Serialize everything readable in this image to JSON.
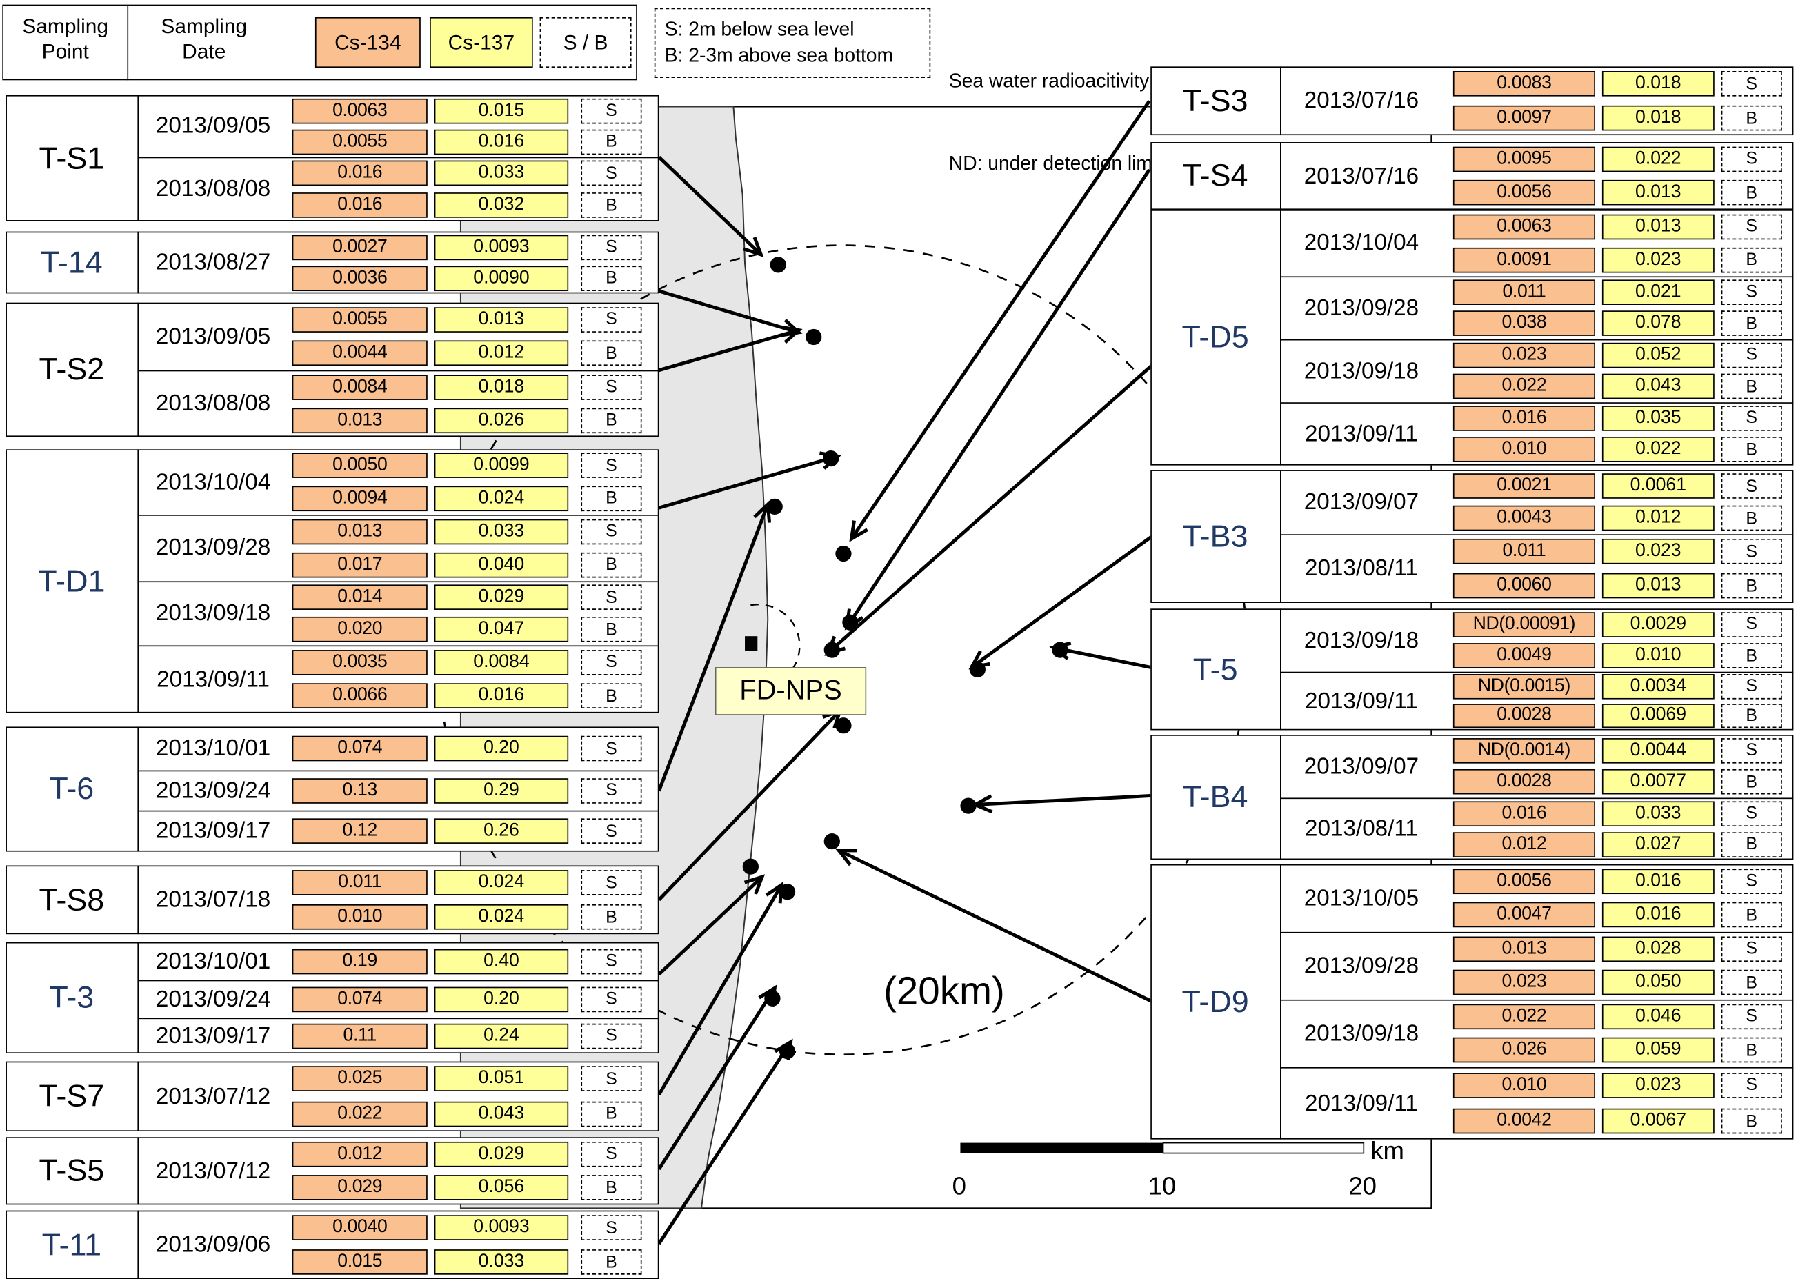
{
  "header": {
    "col_point": [
      "Sampling",
      "Point"
    ],
    "col_date": [
      "Sampling",
      "Date"
    ],
    "cs134": "Cs-134",
    "cs137": "Cs-137",
    "sb": "S / B"
  },
  "legend_sb": {
    "s": "S: 2m below sea level",
    "b": "B: 2-3m above sea bottom"
  },
  "legend_units": {
    "line1": "Sea water radioacitivity (Bq/L):",
    "line2": "ND: under detection limits;    Numbers in parentheses: detection limits"
  },
  "map": {
    "plant_label": "FD-NPS",
    "radius_label": "(20km)",
    "scale_unit": "km",
    "scale_ticks": [
      "0",
      "10",
      "20"
    ],
    "colors": {
      "cs134": "#fac090",
      "cs137": "#ffff99",
      "land": "#e6e6e6"
    }
  },
  "left_points": [
    {
      "name": "T-S1",
      "rows": [
        {
          "date": "2013/09/05",
          "pairs": [
            {
              "cs134": "0.0063",
              "cs137": "0.015",
              "sb": "S"
            },
            {
              "cs134": "0.0055",
              "cs137": "0.016",
              "sb": "B"
            }
          ]
        },
        {
          "date": "2013/08/08",
          "pairs": [
            {
              "cs134": "0.016",
              "cs137": "0.033",
              "sb": "S"
            },
            {
              "cs134": "0.016",
              "cs137": "0.032",
              "sb": "B"
            }
          ]
        }
      ]
    },
    {
      "name": "T-14",
      "rows": [
        {
          "date": "2013/08/27",
          "pairs": [
            {
              "cs134": "0.0027",
              "cs137": "0.0093",
              "sb": "S"
            },
            {
              "cs134": "0.0036",
              "cs137": "0.0090",
              "sb": "B"
            }
          ]
        }
      ]
    },
    {
      "name": "T-S2",
      "rows": [
        {
          "date": "2013/09/05",
          "pairs": [
            {
              "cs134": "0.0055",
              "cs137": "0.013",
              "sb": "S"
            },
            {
              "cs134": "0.0044",
              "cs137": "0.012",
              "sb": "B"
            }
          ]
        },
        {
          "date": "2013/08/08",
          "pairs": [
            {
              "cs134": "0.0084",
              "cs137": "0.018",
              "sb": "S"
            },
            {
              "cs134": "0.013",
              "cs137": "0.026",
              "sb": "B"
            }
          ]
        }
      ]
    },
    {
      "name": "T-D1",
      "rows": [
        {
          "date": "2013/10/04",
          "pairs": [
            {
              "cs134": "0.0050",
              "cs137": "0.0099",
              "sb": "S"
            },
            {
              "cs134": "0.0094",
              "cs137": "0.024",
              "sb": "B"
            }
          ]
        },
        {
          "date": "2013/09/28",
          "pairs": [
            {
              "cs134": "0.013",
              "cs137": "0.033",
              "sb": "S"
            },
            {
              "cs134": "0.017",
              "cs137": "0.040",
              "sb": "B"
            }
          ]
        },
        {
          "date": "2013/09/18",
          "pairs": [
            {
              "cs134": "0.014",
              "cs137": "0.029",
              "sb": "S"
            },
            {
              "cs134": "0.020",
              "cs137": "0.047",
              "sb": "B"
            }
          ]
        },
        {
          "date": "2013/09/11",
          "pairs": [
            {
              "cs134": "0.0035",
              "cs137": "0.0084",
              "sb": "S"
            },
            {
              "cs134": "0.0066",
              "cs137": "0.016",
              "sb": "B"
            }
          ]
        }
      ]
    },
    {
      "name": "T-6",
      "rows": [
        {
          "date": "2013/10/01",
          "pairs": [
            {
              "cs134": "0.074",
              "cs137": "0.20",
              "sb": "S"
            }
          ]
        },
        {
          "date": "2013/09/24",
          "pairs": [
            {
              "cs134": "0.13",
              "cs137": "0.29",
              "sb": "S"
            }
          ]
        },
        {
          "date": "2013/09/17",
          "pairs": [
            {
              "cs134": "0.12",
              "cs137": "0.26",
              "sb": "S"
            }
          ]
        }
      ]
    },
    {
      "name": "T-S8",
      "rows": [
        {
          "date": "2013/07/18",
          "pairs": [
            {
              "cs134": "0.011",
              "cs137": "0.024",
              "sb": "S"
            },
            {
              "cs134": "0.010",
              "cs137": "0.024",
              "sb": "B"
            }
          ]
        }
      ]
    },
    {
      "name": "T-3",
      "rows": [
        {
          "date": "2013/10/01",
          "pairs": [
            {
              "cs134": "0.19",
              "cs137": "0.40",
              "sb": "S"
            }
          ]
        },
        {
          "date": "2013/09/24",
          "pairs": [
            {
              "cs134": "0.074",
              "cs137": "0.20",
              "sb": "S"
            }
          ]
        },
        {
          "date": "2013/09/17",
          "pairs": [
            {
              "cs134": "0.11",
              "cs137": "0.24",
              "sb": "S"
            }
          ]
        }
      ]
    },
    {
      "name": "T-S7",
      "rows": [
        {
          "date": "2013/07/12",
          "pairs": [
            {
              "cs134": "0.025",
              "cs137": "0.051",
              "sb": "S"
            },
            {
              "cs134": "0.022",
              "cs137": "0.043",
              "sb": "B"
            }
          ]
        }
      ]
    },
    {
      "name": "T-S5",
      "rows": [
        {
          "date": "2013/07/12",
          "pairs": [
            {
              "cs134": "0.012",
              "cs137": "0.029",
              "sb": "S"
            },
            {
              "cs134": "0.029",
              "cs137": "0.056",
              "sb": "B"
            }
          ]
        }
      ]
    },
    {
      "name": "T-11",
      "rows": [
        {
          "date": "2013/09/06",
          "pairs": [
            {
              "cs134": "0.0040",
              "cs137": "0.0093",
              "sb": "S"
            },
            {
              "cs134": "0.015",
              "cs137": "0.033",
              "sb": "B"
            }
          ]
        }
      ]
    }
  ],
  "right_points": [
    {
      "name": "T-S3",
      "rows": [
        {
          "date": "2013/07/16",
          "pairs": [
            {
              "cs134": "0.0083",
              "cs137": "0.018",
              "sb": "S"
            },
            {
              "cs134": "0.0097",
              "cs137": "0.018",
              "sb": "B"
            }
          ]
        }
      ]
    },
    {
      "name": "T-S4",
      "rows": [
        {
          "date": "2013/07/16",
          "pairs": [
            {
              "cs134": "0.0095",
              "cs137": "0.022",
              "sb": "S"
            },
            {
              "cs134": "0.0056",
              "cs137": "0.013",
              "sb": "B"
            }
          ]
        }
      ]
    },
    {
      "name": "T-D5",
      "rows": [
        {
          "date": "2013/10/04",
          "pairs": [
            {
              "cs134": "0.0063",
              "cs137": "0.013",
              "sb": "S"
            },
            {
              "cs134": "0.0091",
              "cs137": "0.023",
              "sb": "B"
            }
          ]
        },
        {
          "date": "2013/09/28",
          "pairs": [
            {
              "cs134": "0.011",
              "cs137": "0.021",
              "sb": "S"
            },
            {
              "cs134": "0.038",
              "cs137": "0.078",
              "sb": "B"
            }
          ]
        },
        {
          "date": "2013/09/18",
          "pairs": [
            {
              "cs134": "0.023",
              "cs137": "0.052",
              "sb": "S"
            },
            {
              "cs134": "0.022",
              "cs137": "0.043",
              "sb": "B"
            }
          ]
        },
        {
          "date": "2013/09/11",
          "pairs": [
            {
              "cs134": "0.016",
              "cs137": "0.035",
              "sb": "S"
            },
            {
              "cs134": "0.010",
              "cs137": "0.022",
              "sb": "B"
            }
          ]
        }
      ]
    },
    {
      "name": "T-B3",
      "rows": [
        {
          "date": "2013/09/07",
          "pairs": [
            {
              "cs134": "0.0021",
              "cs137": "0.0061",
              "sb": "S"
            },
            {
              "cs134": "0.0043",
              "cs137": "0.012",
              "sb": "B"
            }
          ]
        },
        {
          "date": "2013/08/11",
          "pairs": [
            {
              "cs134": "0.011",
              "cs137": "0.023",
              "sb": "S"
            },
            {
              "cs134": "0.0060",
              "cs137": "0.013",
              "sb": "B"
            }
          ]
        }
      ]
    },
    {
      "name": "T-5",
      "rows": [
        {
          "date": "2013/09/18",
          "pairs": [
            {
              "cs134": "ND(0.00091)",
              "cs137": "0.0029",
              "sb": "S"
            },
            {
              "cs134": "0.0049",
              "cs137": "0.010",
              "sb": "B"
            }
          ]
        },
        {
          "date": "2013/09/11",
          "pairs": [
            {
              "cs134": "ND(0.0015)",
              "cs137": "0.0034",
              "sb": "S"
            },
            {
              "cs134": "0.0028",
              "cs137": "0.0069",
              "sb": "B"
            }
          ]
        }
      ]
    },
    {
      "name": "T-B4",
      "rows": [
        {
          "date": "2013/09/07",
          "pairs": [
            {
              "cs134": "ND(0.0014)",
              "cs137": "0.0044",
              "sb": "S"
            },
            {
              "cs134": "0.0028",
              "cs137": "0.0077",
              "sb": "B"
            }
          ]
        },
        {
          "date": "2013/08/11",
          "pairs": [
            {
              "cs134": "0.016",
              "cs137": "0.033",
              "sb": "S"
            },
            {
              "cs134": "0.012",
              "cs137": "0.027",
              "sb": "B"
            }
          ]
        }
      ]
    },
    {
      "name": "T-D9",
      "rows": [
        {
          "date": "2013/10/05",
          "pairs": [
            {
              "cs134": "0.0056",
              "cs137": "0.016",
              "sb": "S"
            },
            {
              "cs134": "0.0047",
              "cs137": "0.016",
              "sb": "B"
            }
          ]
        },
        {
          "date": "2013/09/28",
          "pairs": [
            {
              "cs134": "0.013",
              "cs137": "0.028",
              "sb": "S"
            },
            {
              "cs134": "0.023",
              "cs137": "0.050",
              "sb": "B"
            }
          ]
        },
        {
          "date": "2013/09/18",
          "pairs": [
            {
              "cs134": "0.022",
              "cs137": "0.046",
              "sb": "S"
            },
            {
              "cs134": "0.026",
              "cs137": "0.059",
              "sb": "B"
            }
          ]
        },
        {
          "date": "2013/09/11",
          "pairs": [
            {
              "cs134": "0.010",
              "cs137": "0.023",
              "sb": "S"
            },
            {
              "cs134": "0.0042",
              "cs137": "0.0067",
              "sb": "B"
            }
          ]
        }
      ]
    }
  ]
}
